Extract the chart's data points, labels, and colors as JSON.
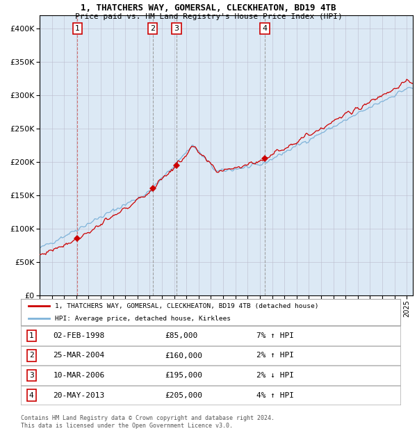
{
  "title1": "1, THATCHERS WAY, GOMERSAL, CLECKHEATON, BD19 4TB",
  "title2": "Price paid vs. HM Land Registry's House Price Index (HPI)",
  "plot_bg_color": "#dce9f5",
  "hpi_line_color": "#7fb3d9",
  "price_line_color": "#cc0000",
  "marker_color": "#cc0000",
  "purchases": [
    {
      "num": 1,
      "date": "02-FEB-1998",
      "price": 85000,
      "hpi_pct": "7%",
      "hpi_dir": "↑"
    },
    {
      "num": 2,
      "date": "25-MAR-2004",
      "price": 160000,
      "hpi_pct": "2%",
      "hpi_dir": "↑"
    },
    {
      "num": 3,
      "date": "10-MAR-2006",
      "price": 195000,
      "hpi_pct": "2%",
      "hpi_dir": "↓"
    },
    {
      "num": 4,
      "date": "20-MAY-2013",
      "price": 205000,
      "hpi_pct": "4%",
      "hpi_dir": "↑"
    }
  ],
  "purchase_years": [
    1998.09,
    2004.23,
    2006.19,
    2013.38
  ],
  "ylim": [
    0,
    420000
  ],
  "yticks": [
    0,
    50000,
    100000,
    150000,
    200000,
    250000,
    300000,
    350000,
    400000
  ],
  "legend_label_red": "1, THATCHERS WAY, GOMERSAL, CLECKHEATON, BD19 4TB (detached house)",
  "legend_label_blue": "HPI: Average price, detached house, Kirklees",
  "footnote": "Contains HM Land Registry data © Crown copyright and database right 2024.\nThis data is licensed under the Open Government Licence v3.0."
}
